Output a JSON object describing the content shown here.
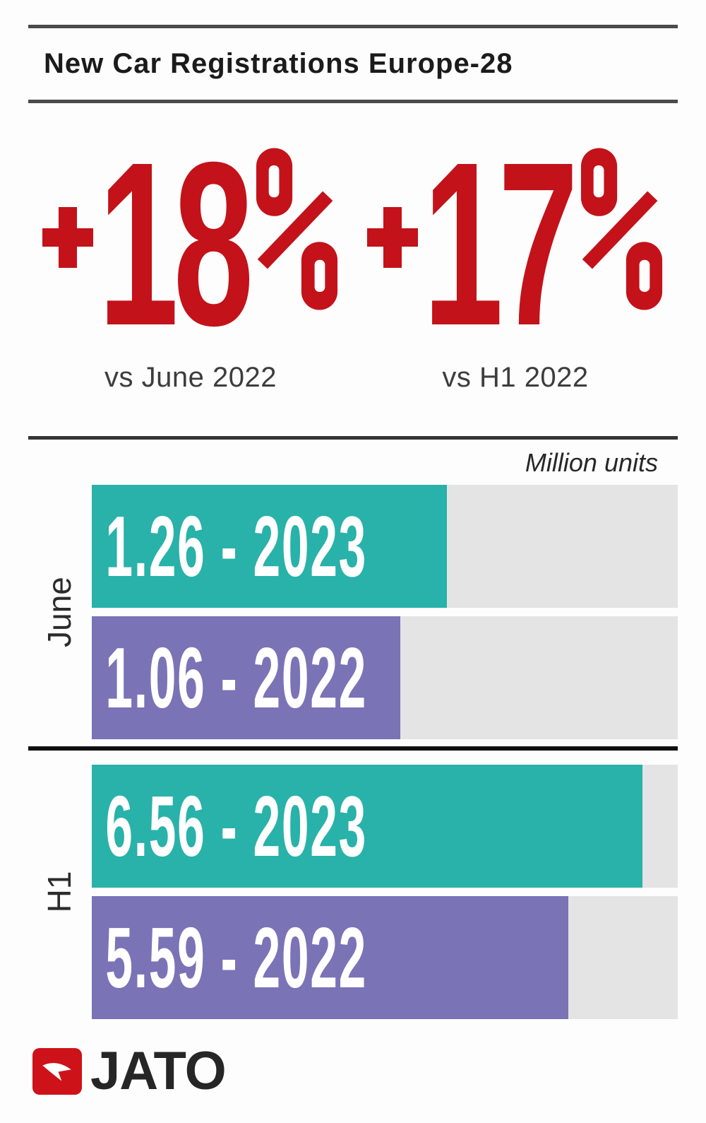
{
  "header": {
    "title": "New Car Registrations Europe-28"
  },
  "stats": [
    {
      "figure": "+18%",
      "sign": "+",
      "digits": "18",
      "caption": "vs June 2022"
    },
    {
      "figure": "+17%",
      "sign": "+",
      "digits": "17",
      "caption": "vs H1 2022"
    }
  ],
  "chart_data": {
    "type": "bar",
    "orientation": "horizontal",
    "title": "New Car Registrations Europe-28",
    "unit_label": "Million units",
    "legend": false,
    "grid": false,
    "groups": [
      {
        "category": "June",
        "bars": [
          {
            "series": "2023",
            "value": 1.26,
            "label": "1.26 - 2023",
            "color": "teal",
            "width_pct": 60.6
          },
          {
            "series": "2022",
            "value": 1.06,
            "label": "1.06 - 2022",
            "color": "purple",
            "width_pct": 52.7
          }
        ]
      },
      {
        "category": "H1",
        "bars": [
          {
            "series": "2023",
            "value": 6.56,
            "label": "6.56 - 2023",
            "color": "teal",
            "width_pct": 94.0
          },
          {
            "series": "2022",
            "value": 5.59,
            "label": "5.59 - 2022",
            "color": "purple",
            "width_pct": 81.3
          }
        ]
      }
    ],
    "colors": {
      "teal": "#28b2a9",
      "purple": "#7a73b6",
      "track": "#e5e4e4",
      "accent_red": "#c3121a"
    }
  },
  "footer": {
    "brand": "JATO"
  }
}
